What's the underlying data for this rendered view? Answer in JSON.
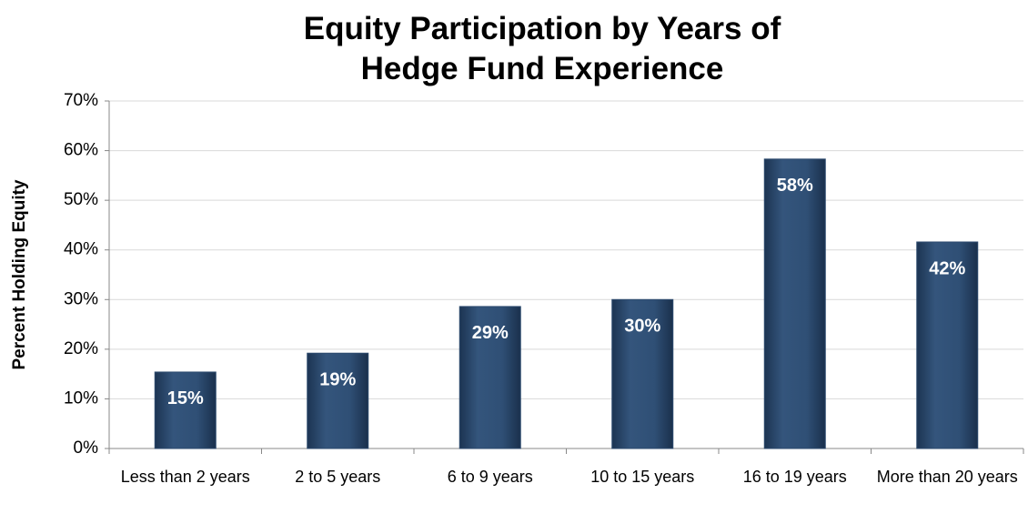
{
  "chart_data": {
    "type": "bar",
    "title": "Equity Participation by Years of\nHedge Fund Experience",
    "y_label": "Percent Holding Equity",
    "categories": [
      "Less than 2 years",
      "2 to 5 years",
      "6 to 9 years",
      "10 to 15 years",
      "16 to 19 years",
      "More than 20 years"
    ],
    "values": [
      15.4,
      19.2,
      28.6,
      30,
      58.3,
      41.6
    ],
    "value_labels": [
      "15%",
      "19%",
      "29%",
      "30%",
      "58%",
      "42%"
    ],
    "color": "#2c4a6e",
    "ylim": [
      0,
      70
    ],
    "yticks": [
      {
        "value": 0,
        "label": "0%"
      },
      {
        "value": 10,
        "label": "10%"
      },
      {
        "value": 20,
        "label": "20%"
      },
      {
        "value": 30,
        "label": "30%"
      },
      {
        "value": 40,
        "label": "40%"
      },
      {
        "value": 50,
        "label": "50%"
      },
      {
        "value": 60,
        "label": "60%"
      },
      {
        "value": 70,
        "label": "70%"
      }
    ],
    "grid": true
  }
}
